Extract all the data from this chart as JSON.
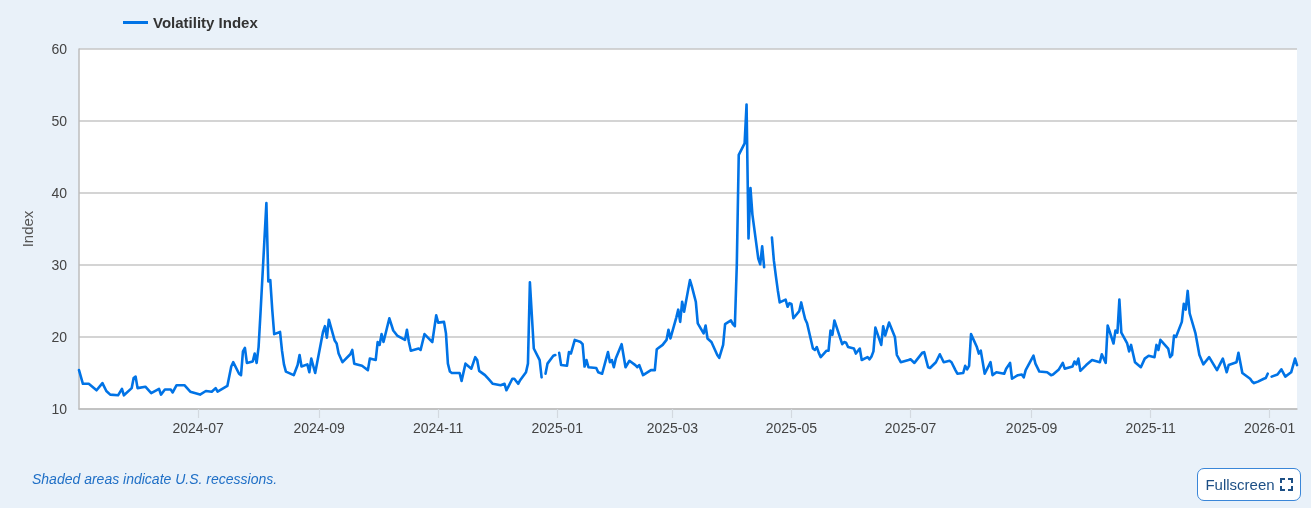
{
  "chart_data": {
    "type": "line",
    "ylabel": "Index",
    "annotations": [
      "Shaded areas indicate U.S. recessions.",
      "Fullscreen"
    ],
    "x": [
      "2024-05-01",
      "2024-05-03",
      "2024-05-06",
      "2024-05-10",
      "2024-05-13",
      "2024-05-15",
      "2024-05-17",
      "2024-05-21",
      "2024-05-23",
      "2024-05-24",
      "2024-05-28",
      "2024-05-29",
      "2024-05-30",
      "2024-05-31",
      "2024-06-04",
      "2024-06-07",
      "2024-06-11",
      "2024-06-12",
      "2024-06-14",
      "2024-06-17",
      "2024-06-18",
      "2024-06-20",
      "2024-06-24",
      "2024-06-27",
      "2024-07-02",
      "2024-07-05",
      "2024-07-08",
      "2024-07-10",
      "2024-07-11",
      "2024-07-16",
      "2024-07-18",
      "2024-07-19",
      "2024-07-22",
      "2024-07-23",
      "2024-07-24",
      "2024-07-25",
      "2024-07-26",
      "2024-07-29",
      "2024-07-30",
      "2024-07-31",
      "2024-08-01",
      "2024-08-02",
      "2024-08-05",
      "2024-08-06",
      "2024-08-07",
      "2024-08-08",
      "2024-08-09",
      "2024-08-12",
      "2024-08-13",
      "2024-08-14",
      "2024-08-15",
      "2024-08-19",
      "2024-08-21",
      "2024-08-22",
      "2024-08-23",
      "2024-08-26",
      "2024-08-27",
      "2024-08-28",
      "2024-08-30",
      "2024-09-03",
      "2024-09-04",
      "2024-09-05",
      "2024-09-06",
      "2024-09-09",
      "2024-09-10",
      "2024-09-11",
      "2024-09-13",
      "2024-09-17",
      "2024-09-18",
      "2024-09-19",
      "2024-09-23",
      "2024-09-24",
      "2024-09-26",
      "2024-09-27",
      "2024-09-30",
      "2024-10-01",
      "2024-10-02",
      "2024-10-03",
      "2024-10-04",
      "2024-10-07",
      "2024-10-09",
      "2024-10-11",
      "2024-10-15",
      "2024-10-16",
      "2024-10-17",
      "2024-10-18",
      "2024-10-22",
      "2024-10-23",
      "2024-10-24",
      "2024-10-25",
      "2024-10-29",
      "2024-10-31",
      "2024-11-01",
      "2024-11-04",
      "2024-11-05",
      "2024-11-06",
      "2024-11-07",
      "2024-11-08",
      "2024-11-12",
      "2024-11-13",
      "2024-11-15",
      "2024-11-18",
      "2024-11-20",
      "2024-11-21",
      "2024-11-22",
      "2024-11-25",
      "2024-11-27",
      "2024-11-29",
      "2024-12-03",
      "2024-12-05",
      "2024-12-06",
      "2024-12-09",
      "2024-12-10",
      "2024-12-12",
      "2024-12-13",
      "2024-12-16",
      "2024-12-17",
      "2024-12-18",
      "2024-12-20",
      "2024-12-23",
      "2024-12-24",
      "2024-12-25",
      "2024-12-26",
      "2024-12-27",
      "2024-12-30",
      "2024-12-31",
      "2025-01-01",
      "2025-01-02",
      "2025-01-03",
      "2025-01-06",
      "2025-01-07",
      "2025-01-08",
      "2025-01-10",
      "2025-01-13",
      "2025-01-14",
      "2025-01-15",
      "2025-01-16",
      "2025-01-17",
      "2025-01-21",
      "2025-01-22",
      "2025-01-24",
      "2025-01-27",
      "2025-01-28",
      "2025-01-29",
      "2025-01-30",
      "2025-01-31",
      "2025-02-03",
      "2025-02-05",
      "2025-02-07",
      "2025-02-10",
      "2025-02-11",
      "2025-02-12",
      "2025-02-14",
      "2025-02-18",
      "2025-02-20",
      "2025-02-21",
      "2025-02-24",
      "2025-02-26",
      "2025-02-27",
      "2025-02-28",
      "2025-03-03",
      "2025-03-04",
      "2025-03-05",
      "2025-03-06",
      "2025-03-07",
      "2025-03-10",
      "2025-03-11",
      "2025-03-13",
      "2025-03-14",
      "2025-03-17",
      "2025-03-18",
      "2025-03-19",
      "2025-03-21",
      "2025-03-24",
      "2025-03-25",
      "2025-03-27",
      "2025-03-28",
      "2025-03-31",
      "2025-04-01",
      "2025-04-02",
      "2025-04-03",
      "2025-04-04",
      "2025-04-07",
      "2025-04-08",
      "2025-04-09",
      "2025-04-10",
      "2025-04-11",
      "2025-04-14",
      "2025-04-15",
      "2025-04-16",
      "2025-04-17",
      "2025-04-18",
      "2025-04-21",
      "2025-04-22",
      "2025-04-23",
      "2025-04-24",
      "2025-04-25",
      "2025-04-28",
      "2025-04-29",
      "2025-04-30",
      "2025-05-01",
      "2025-05-02",
      "2025-05-05",
      "2025-05-06",
      "2025-05-07",
      "2025-05-08",
      "2025-05-09",
      "2025-05-12",
      "2025-05-13",
      "2025-05-14",
      "2025-05-15",
      "2025-05-16",
      "2025-05-19",
      "2025-05-20",
      "2025-05-21",
      "2025-05-22",
      "2025-05-23",
      "2025-05-27",
      "2025-05-28",
      "2025-05-29",
      "2025-05-30",
      "2025-06-02",
      "2025-06-03",
      "2025-06-05",
      "2025-06-06",
      "2025-06-09",
      "2025-06-10",
      "2025-06-11",
      "2025-06-12",
      "2025-06-13",
      "2025-06-16",
      "2025-06-17",
      "2025-06-18",
      "2025-06-20",
      "2025-06-23",
      "2025-06-24",
      "2025-06-26",
      "2025-06-30",
      "2025-07-01",
      "2025-07-03",
      "2025-07-07",
      "2025-07-08",
      "2025-07-10",
      "2025-07-11",
      "2025-07-14",
      "2025-07-16",
      "2025-07-18",
      "2025-07-21",
      "2025-07-22",
      "2025-07-24",
      "2025-07-25",
      "2025-07-28",
      "2025-07-29",
      "2025-07-30",
      "2025-07-31",
      "2025-08-01",
      "2025-08-04",
      "2025-08-05",
      "2025-08-06",
      "2025-08-08",
      "2025-08-11",
      "2025-08-12",
      "2025-08-14",
      "2025-08-18",
      "2025-08-19",
      "2025-08-21",
      "2025-08-22",
      "2025-08-25",
      "2025-08-27",
      "2025-08-28",
      "2025-08-29",
      "2025-09-02",
      "2025-09-03",
      "2025-09-05",
      "2025-09-09",
      "2025-09-11",
      "2025-09-12",
      "2025-09-15",
      "2025-09-17",
      "2025-09-18",
      "2025-09-22",
      "2025-09-23",
      "2025-09-24",
      "2025-09-25",
      "2025-09-26",
      "2025-09-29",
      "2025-10-02",
      "2025-10-06",
      "2025-10-07",
      "2025-10-09",
      "2025-10-10",
      "2025-10-13",
      "2025-10-14",
      "2025-10-15",
      "2025-10-16",
      "2025-10-17",
      "2025-10-20",
      "2025-10-21",
      "2025-10-22",
      "2025-10-24",
      "2025-10-27",
      "2025-10-29",
      "2025-10-31",
      "2025-11-03",
      "2025-11-04",
      "2025-11-05",
      "2025-11-06",
      "2025-11-10",
      "2025-11-11",
      "2025-11-12",
      "2025-11-13",
      "2025-11-14",
      "2025-11-17",
      "2025-11-18",
      "2025-11-19",
      "2025-11-20",
      "2025-11-21",
      "2025-11-24",
      "2025-11-26",
      "2025-11-28",
      "2025-12-01",
      "2025-12-05",
      "2025-12-08",
      "2025-12-10",
      "2025-12-11",
      "2025-12-15",
      "2025-12-16",
      "2025-12-18",
      "2025-12-22",
      "2025-12-23",
      "2025-12-24",
      "2025-12-26",
      "2025-12-29",
      "2025-12-30",
      "2025-12-31",
      "2026-01-01",
      "2026-01-02",
      "2026-01-05",
      "2026-01-07",
      "2026-01-09",
      "2026-01-12",
      "2026-01-14",
      "2026-01-15"
    ],
    "series": [
      {
        "name": "Volatility Index",
        "color": "#0073e6",
        "values": [
          15.4,
          13.5,
          13.5,
          12.6,
          13.6,
          12.5,
          12.0,
          11.9,
          12.8,
          11.9,
          12.9,
          14.3,
          14.5,
          12.9,
          13.1,
          12.2,
          12.8,
          12.0,
          12.7,
          12.7,
          12.3,
          13.3,
          13.3,
          12.4,
          12.0,
          12.5,
          12.4,
          12.9,
          12.4,
          13.2,
          15.9,
          16.5,
          14.9,
          14.7,
          18.0,
          18.5,
          16.4,
          16.6,
          17.7,
          16.4,
          18.6,
          23.4,
          38.6,
          27.7,
          27.9,
          23.8,
          20.4,
          20.7,
          18.1,
          16.2,
          15.2,
          14.7,
          16.1,
          17.5,
          15.9,
          16.2,
          15.1,
          17.0,
          15.0,
          20.7,
          21.5,
          19.9,
          22.4,
          19.5,
          19.1,
          17.7,
          16.5,
          17.6,
          18.2,
          16.3,
          16.0,
          15.8,
          15.4,
          17.0,
          16.8,
          19.3,
          18.9,
          20.4,
          19.3,
          22.6,
          20.9,
          20.2,
          19.6,
          21.0,
          19.3,
          18.1,
          18.4,
          18.2,
          19.3,
          20.4,
          19.3,
          23.0,
          22.0,
          22.1,
          20.5,
          16.3,
          15.2,
          15.0,
          15.0,
          13.9,
          16.3,
          15.6,
          17.2,
          16.8,
          15.3,
          14.7,
          14.1,
          13.5,
          13.3,
          13.5,
          12.6,
          14.2,
          14.2,
          13.5,
          14.0,
          15.1,
          16.3,
          27.6,
          18.4,
          16.8,
          14.4,
          null,
          14.9,
          16.3,
          17.4,
          17.5,
          null,
          17.8,
          16.1,
          16.0,
          17.9,
          17.7,
          19.6,
          19.3,
          19.0,
          15.9,
          16.8,
          15.8,
          15.7,
          15.1,
          14.9,
          17.9,
          16.5,
          16.8,
          15.8,
          17.0,
          19.0,
          15.8,
          16.7,
          16.1,
          15.8,
          16.1,
          14.7,
          15.4,
          15.4,
          18.3,
          18.9,
          19.6,
          21.0,
          19.8,
          22.7,
          23.8,
          22.1,
          24.9,
          23.5,
          27.9,
          27.0,
          24.9,
          21.9,
          20.5,
          21.6,
          19.8,
          19.3,
          17.5,
          17.1,
          18.9,
          21.8,
          22.3,
          21.8,
          21.5,
          30.0,
          45.3,
          46.9,
          52.3,
          33.7,
          40.7,
          37.0,
          30.9,
          30.1,
          32.6,
          29.7,
          null,
          33.8,
          30.6,
          28.5,
          26.5,
          24.8,
          25.2,
          24.2,
          24.7,
          24.6,
          22.6,
          23.6,
          24.8,
          23.6,
          22.5,
          21.9,
          18.4,
          18.2,
          18.6,
          17.8,
          17.2,
          18.1,
          18.1,
          20.9,
          20.3,
          22.3,
          19.0,
          19.3,
          19.2,
          18.6,
          18.4,
          17.7,
          18.4,
          16.8,
          17.2,
          16.9,
          17.3,
          18.0,
          21.3,
          18.9,
          21.5,
          20.2,
          22.0,
          20.0,
          17.5,
          16.5,
          16.8,
          16.9,
          16.4,
          17.8,
          17.9,
          15.8,
          15.7,
          16.5,
          17.6,
          16.5,
          16.7,
          16.5,
          15.4,
          14.9,
          15.0,
          16.0,
          15.5,
          16.0,
          20.4,
          18.6,
          17.7,
          18.1,
          14.9,
          16.5,
          14.7,
          15.1,
          14.9,
          15.6,
          16.4,
          14.2,
          14.7,
          14.8,
          14.4,
          15.4,
          17.4,
          16.3,
          15.2,
          15.1,
          14.7,
          14.8,
          15.5,
          16.4,
          15.6,
          15.9,
          16.6,
          16.2,
          17.0,
          15.3,
          16.1,
          16.8,
          16.5,
          17.6,
          16.4,
          21.6,
          19.1,
          20.9,
          20.6,
          25.2,
          20.6,
          19.1,
          18.0,
          18.9,
          16.5,
          15.8,
          17.0,
          17.4,
          17.2,
          18.9,
          18.2,
          19.6,
          18.4,
          17.2,
          17.5,
          20.2,
          20.0,
          22.1,
          24.6,
          23.8,
          26.4,
          23.3,
          20.5,
          17.5,
          16.2,
          17.2,
          15.4,
          17.0,
          15.1,
          16.1,
          16.5,
          17.8,
          15.0,
          14.2,
          13.8,
          13.6,
          13.8,
          14.2,
          14.3,
          14.9,
          null,
          14.5,
          14.8,
          15.5,
          14.5,
          15.1,
          17.0,
          16.1
        ]
      }
    ],
    "xlim": [
      "2024-05-01",
      "2026-01-15"
    ],
    "xticks": [
      {
        "value": "2024-07-01",
        "label": "2024-07"
      },
      {
        "value": "2024-09-01",
        "label": "2024-09"
      },
      {
        "value": "2024-11-01",
        "label": "2024-11"
      },
      {
        "value": "2025-01-01",
        "label": "2025-01"
      },
      {
        "value": "2025-03-01",
        "label": "2025-03"
      },
      {
        "value": "2025-05-01",
        "label": "2025-05"
      },
      {
        "value": "2025-07-01",
        "label": "2025-07"
      },
      {
        "value": "2025-09-01",
        "label": "2025-09"
      },
      {
        "value": "2025-11-01",
        "label": "2025-11"
      },
      {
        "value": "2026-01-01",
        "label": "2026-01"
      }
    ],
    "ylim": [
      10,
      60
    ],
    "yticks": [
      10,
      20,
      30,
      40,
      50,
      60
    ],
    "grid": "y",
    "legend": "top left",
    "marker": "none",
    "line_style": "solid"
  }
}
